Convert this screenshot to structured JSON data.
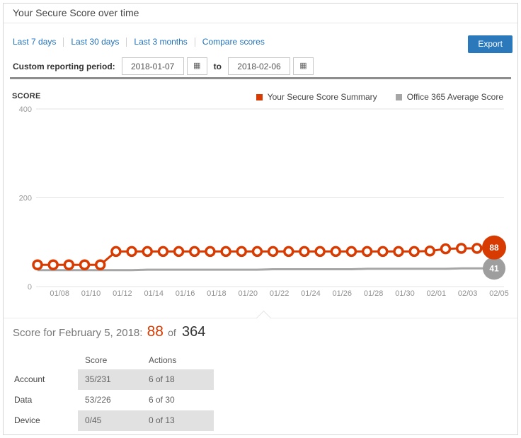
{
  "window": {
    "title": "Your Secure Score over time"
  },
  "toolbar": {
    "links": [
      "Last 7 days",
      "Last 30 days",
      "Last 3 months",
      "Compare scores"
    ],
    "export_label": "Export",
    "custom_period_label": "Custom reporting period:",
    "to_label": "to",
    "date_from": "2018-01-07",
    "date_to": "2018-02-06"
  },
  "icons": {
    "calendar": "▦"
  },
  "chart_data": {
    "type": "line",
    "axis_title": "SCORE",
    "ylabel": "SCORE",
    "ylim": [
      0,
      400
    ],
    "yticks": [
      0,
      200,
      400
    ],
    "grid": "horizontal",
    "legend_position": "top-right",
    "x": [
      "01/07",
      "01/08",
      "01/09",
      "01/10",
      "01/11",
      "01/12",
      "01/13",
      "01/14",
      "01/15",
      "01/16",
      "01/17",
      "01/18",
      "01/19",
      "01/20",
      "01/21",
      "01/22",
      "01/23",
      "01/24",
      "01/25",
      "01/26",
      "01/27",
      "01/28",
      "01/29",
      "01/30",
      "01/31",
      "02/01",
      "02/02",
      "02/03",
      "02/04",
      "02/05"
    ],
    "xtick_labels": [
      "01/08",
      "01/10",
      "01/12",
      "01/14",
      "01/16",
      "01/18",
      "01/20",
      "01/22",
      "01/24",
      "01/26",
      "01/28",
      "01/30",
      "02/01",
      "02/03",
      "02/05"
    ],
    "series": [
      {
        "name": "Your Secure Score Summary",
        "color": "#d83b01",
        "end_label": "88",
        "values": [
          49,
          49,
          49,
          49,
          49,
          79,
          79,
          79,
          79,
          79,
          79,
          79,
          79,
          79,
          79,
          79,
          79,
          79,
          79,
          79,
          79,
          79,
          79,
          79,
          79,
          80,
          85,
          86,
          86,
          88
        ]
      },
      {
        "name": "Office 365 Average Score",
        "color": "#a6a6a6",
        "bubble_color": "#9e9e9e",
        "end_label": "41",
        "values": [
          37,
          37,
          37,
          37,
          37,
          37,
          37,
          38,
          38,
          38,
          38,
          38,
          38,
          38,
          38,
          39,
          39,
          39,
          39,
          39,
          39,
          40,
          40,
          40,
          40,
          40,
          40,
          41,
          41,
          41
        ]
      }
    ]
  },
  "detail": {
    "heading_prefix": "Score for February 5, 2018:",
    "score_value": "88",
    "of_label": "of",
    "score_total": "364",
    "table": {
      "columns": [
        "Score",
        "Actions"
      ],
      "rows": [
        {
          "label": "Account",
          "score": "35/231",
          "actions": "6 of 18"
        },
        {
          "label": "Data",
          "score": "53/226",
          "actions": "6 of 30"
        },
        {
          "label": "Device",
          "score": "0/45",
          "actions": "0 of 13"
        }
      ]
    }
  }
}
